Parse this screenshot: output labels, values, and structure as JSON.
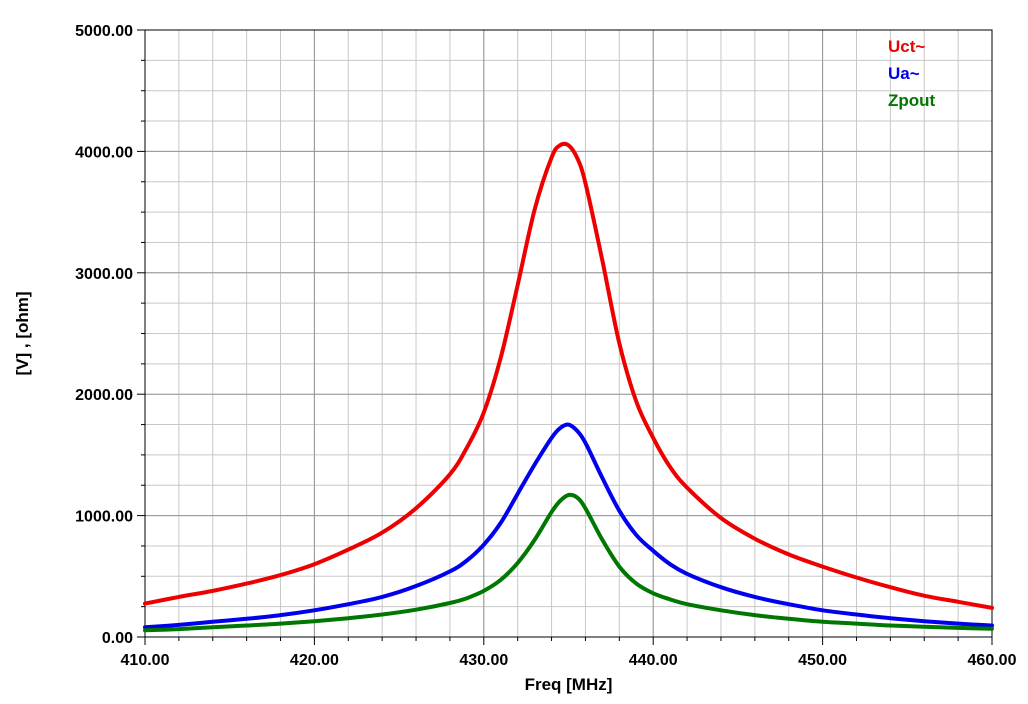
{
  "chart_data": {
    "type": "line",
    "title": "",
    "xlabel": "Freq [MHz]",
    "ylabel": "[V] , [ohm]",
    "xlim": [
      410,
      460
    ],
    "ylim": [
      0,
      5000
    ],
    "x_ticks": [
      "410.00",
      "420.00",
      "430.00",
      "440.00",
      "450.00",
      "460.00"
    ],
    "y_ticks": [
      "0.00",
      "1000.00",
      "2000.00",
      "3000.00",
      "4000.00",
      "5000.00"
    ],
    "grid": true,
    "legend_position": "top-right",
    "x": [
      410,
      412,
      414,
      416,
      418,
      420,
      422,
      424,
      426,
      428,
      429,
      430,
      431,
      432,
      433,
      434,
      434.5,
      435,
      435.5,
      436,
      437,
      438,
      439,
      440,
      441,
      442,
      444,
      446,
      448,
      450,
      452,
      454,
      456,
      458,
      460
    ],
    "series": [
      {
        "name": "Uct~",
        "color": "#ee0000",
        "values": [
          275,
          330,
          380,
          440,
          510,
          600,
          720,
          860,
          1060,
          1340,
          1560,
          1850,
          2300,
          2900,
          3520,
          3950,
          4050,
          4050,
          3950,
          3740,
          3100,
          2420,
          1940,
          1640,
          1400,
          1230,
          980,
          810,
          680,
          580,
          490,
          410,
          340,
          290,
          240
        ]
      },
      {
        "name": "Ua~",
        "color": "#0000ee",
        "values": [
          80,
          100,
          125,
          150,
          180,
          220,
          270,
          330,
          420,
          540,
          630,
          760,
          940,
          1180,
          1420,
          1640,
          1720,
          1750,
          1700,
          1600,
          1310,
          1040,
          840,
          710,
          600,
          520,
          410,
          330,
          270,
          220,
          185,
          155,
          130,
          110,
          95
        ]
      },
      {
        "name": "Zpout",
        "color": "#007700",
        "values": [
          55,
          65,
          80,
          95,
          110,
          130,
          155,
          185,
          225,
          280,
          320,
          380,
          470,
          610,
          800,
          1030,
          1120,
          1170,
          1150,
          1060,
          800,
          580,
          440,
          360,
          310,
          270,
          220,
          180,
          150,
          125,
          110,
          95,
          85,
          75,
          68
        ]
      }
    ]
  }
}
